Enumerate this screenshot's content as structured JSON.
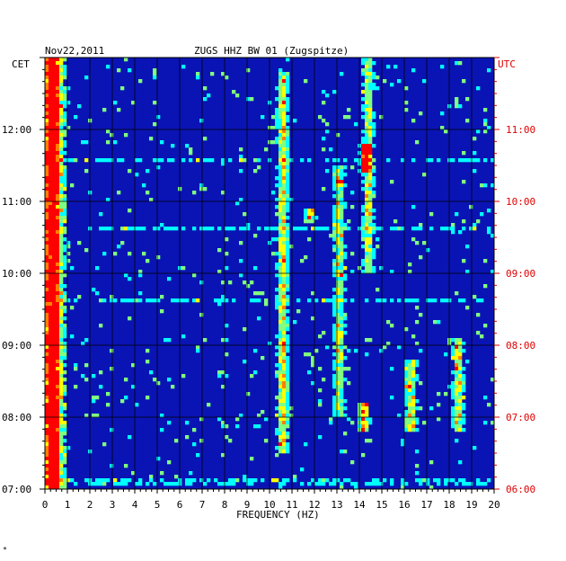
{
  "chart_data": {
    "type": "heatmap",
    "date_label": "Nov22,2011",
    "title": "ZUGS HHZ BW 01 (Zugspitze)",
    "left_tz": "CET",
    "right_tz": "UTC",
    "xlabel": "FREQUENCY (HZ)",
    "x_range": [
      0,
      20
    ],
    "x_ticks": [
      "0",
      "1",
      "2",
      "3",
      "4",
      "5",
      "6",
      "7",
      "8",
      "9",
      "10",
      "11",
      "12",
      "13",
      "14",
      "15",
      "16",
      "17",
      "18",
      "19",
      "20"
    ],
    "left_time_range": [
      "07:00",
      "13:00"
    ],
    "left_ticks": [
      {
        "label": "12:00",
        "hour": 12
      },
      {
        "label": "11:00",
        "hour": 11
      },
      {
        "label": "10:00",
        "hour": 10
      },
      {
        "label": "09:00",
        "hour": 9
      },
      {
        "label": "08:00",
        "hour": 8
      },
      {
        "label": "07:00",
        "hour": 7
      }
    ],
    "right_ticks": [
      {
        "label": "11:00",
        "hour": 12
      },
      {
        "label": "10:00",
        "hour": 11
      },
      {
        "label": "09:00",
        "hour": 10
      },
      {
        "label": "08:00",
        "hour": 9
      },
      {
        "label": "07:00",
        "hour": 8
      },
      {
        "label": "06:00",
        "hour": 7
      }
    ],
    "colormap": [
      "#000080",
      "#0000ff",
      "#0080ff",
      "#00ffff",
      "#80ff80",
      "#ffff00",
      "#ff8000",
      "#ff0000"
    ],
    "background_color": "#0a14b4",
    "grid": true,
    "hot_spots": [
      {
        "freq": 0.4,
        "hour_from": 7.0,
        "hour_to": 13.0,
        "level": 0.9
      },
      {
        "freq": 14.3,
        "hour_from": 11.4,
        "hour_to": 11.8,
        "level": 0.85
      },
      {
        "freq": 14.4,
        "hour_from": 10.0,
        "hour_to": 13.0,
        "level": 0.55
      },
      {
        "freq": 10.6,
        "hour_from": 7.5,
        "hour_to": 12.8,
        "level": 0.6
      },
      {
        "freq": 13.1,
        "hour_from": 8.0,
        "hour_to": 11.5,
        "level": 0.5
      },
      {
        "freq": 14.2,
        "hour_from": 7.8,
        "hour_to": 8.2,
        "level": 0.75
      },
      {
        "freq": 16.3,
        "hour_from": 7.8,
        "hour_to": 8.8,
        "level": 0.6
      },
      {
        "freq": 18.4,
        "hour_from": 7.8,
        "hour_to": 9.1,
        "level": 0.55
      },
      {
        "freq": 11.8,
        "hour_from": 10.7,
        "hour_to": 10.9,
        "level": 0.7
      }
    ]
  },
  "footer_mark": "*"
}
